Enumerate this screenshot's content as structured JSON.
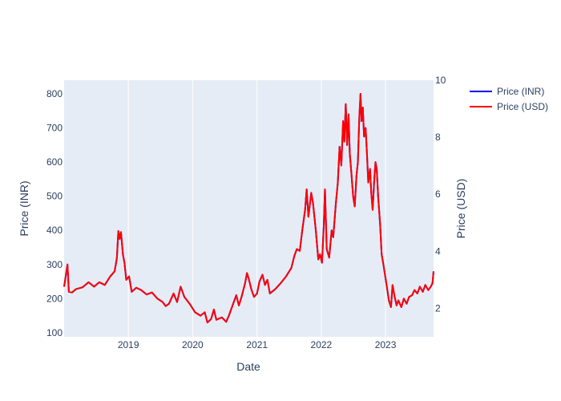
{
  "chart_data": {
    "type": "line",
    "xlabel": "Date",
    "ylabel_left": "Price (INR)",
    "ylabel_right": "Price (USD)",
    "x_ticks": [
      "2019",
      "2020",
      "2021",
      "2022",
      "2023"
    ],
    "x_range": [
      "2018-01-01",
      "2023-10-01"
    ],
    "y_left_ticks": [
      100,
      200,
      300,
      400,
      500,
      600,
      700,
      800
    ],
    "y_left_range": [
      88,
      840
    ],
    "y_right_ticks": [
      2,
      4,
      6,
      8,
      10
    ],
    "y_right_range": [
      1.0,
      10.0
    ],
    "grid": true,
    "legend_placement": "top-right",
    "series": [
      {
        "name": "Price (INR)",
        "color": "#0000ff",
        "axis": "left",
        "points": [
          [
            "2018-01-01",
            235
          ],
          [
            "2018-01-10",
            265
          ],
          [
            "2018-01-20",
            300
          ],
          [
            "2018-01-28",
            220
          ],
          [
            "2018-02-15",
            218
          ],
          [
            "2018-03-10",
            228
          ],
          [
            "2018-04-15",
            233
          ],
          [
            "2018-05-20",
            248
          ],
          [
            "2018-06-20",
            235
          ],
          [
            "2018-07-20",
            248
          ],
          [
            "2018-08-20",
            240
          ],
          [
            "2018-09-20",
            265
          ],
          [
            "2018-10-15",
            280
          ],
          [
            "2018-10-28",
            320
          ],
          [
            "2018-11-05",
            398
          ],
          [
            "2018-11-12",
            375
          ],
          [
            "2018-11-20",
            395
          ],
          [
            "2018-12-01",
            330
          ],
          [
            "2018-12-10",
            305
          ],
          [
            "2018-12-20",
            255
          ],
          [
            "2019-01-05",
            265
          ],
          [
            "2019-01-20",
            220
          ],
          [
            "2019-02-15",
            232
          ],
          [
            "2019-03-15",
            225
          ],
          [
            "2019-04-15",
            212
          ],
          [
            "2019-05-15",
            218
          ],
          [
            "2019-06-15",
            200
          ],
          [
            "2019-07-15",
            190
          ],
          [
            "2019-08-01",
            178
          ],
          [
            "2019-08-20",
            185
          ],
          [
            "2019-09-15",
            215
          ],
          [
            "2019-10-05",
            190
          ],
          [
            "2019-10-25",
            235
          ],
          [
            "2019-11-15",
            205
          ],
          [
            "2019-12-15",
            185
          ],
          [
            "2020-01-15",
            160
          ],
          [
            "2020-02-15",
            150
          ],
          [
            "2020-03-10",
            160
          ],
          [
            "2020-03-25",
            130
          ],
          [
            "2020-04-15",
            140
          ],
          [
            "2020-05-01",
            168
          ],
          [
            "2020-05-15",
            138
          ],
          [
            "2020-06-15",
            145
          ],
          [
            "2020-07-10",
            132
          ],
          [
            "2020-07-25",
            150
          ],
          [
            "2020-08-15",
            180
          ],
          [
            "2020-09-05",
            210
          ],
          [
            "2020-09-20",
            180
          ],
          [
            "2020-10-05",
            205
          ],
          [
            "2020-10-25",
            245
          ],
          [
            "2020-11-05",
            275
          ],
          [
            "2020-11-15",
            258
          ],
          [
            "2020-12-01",
            225
          ],
          [
            "2020-12-15",
            205
          ],
          [
            "2021-01-01",
            215
          ],
          [
            "2021-01-15",
            250
          ],
          [
            "2021-02-01",
            270
          ],
          [
            "2021-02-15",
            240
          ],
          [
            "2021-03-01",
            255
          ],
          [
            "2021-03-15",
            215
          ],
          [
            "2021-04-15",
            228
          ],
          [
            "2021-05-15",
            245
          ],
          [
            "2021-06-15",
            265
          ],
          [
            "2021-07-15",
            290
          ],
          [
            "2021-08-01",
            325
          ],
          [
            "2021-08-15",
            345
          ],
          [
            "2021-09-01",
            340
          ],
          [
            "2021-09-15",
            400
          ],
          [
            "2021-10-01",
            460
          ],
          [
            "2021-10-10",
            520
          ],
          [
            "2021-10-20",
            440
          ],
          [
            "2021-11-05",
            510
          ],
          [
            "2021-11-15",
            480
          ],
          [
            "2021-12-01",
            400
          ],
          [
            "2021-12-15",
            315
          ],
          [
            "2021-12-25",
            330
          ],
          [
            "2022-01-05",
            305
          ],
          [
            "2022-01-15",
            410
          ],
          [
            "2022-01-22",
            520
          ],
          [
            "2022-02-01",
            345
          ],
          [
            "2022-02-15",
            320
          ],
          [
            "2022-03-01",
            400
          ],
          [
            "2022-03-10",
            380
          ],
          [
            "2022-03-25",
            480
          ],
          [
            "2022-04-05",
            540
          ],
          [
            "2022-04-15",
            645
          ],
          [
            "2022-04-25",
            590
          ],
          [
            "2022-05-05",
            720
          ],
          [
            "2022-05-12",
            660
          ],
          [
            "2022-05-20",
            770
          ],
          [
            "2022-05-28",
            650
          ],
          [
            "2022-06-05",
            740
          ],
          [
            "2022-06-12",
            625
          ],
          [
            "2022-06-20",
            575
          ],
          [
            "2022-07-01",
            500
          ],
          [
            "2022-07-10",
            470
          ],
          [
            "2022-07-20",
            560
          ],
          [
            "2022-07-28",
            600
          ],
          [
            "2022-08-05",
            730
          ],
          [
            "2022-08-12",
            800
          ],
          [
            "2022-08-18",
            720
          ],
          [
            "2022-08-25",
            760
          ],
          [
            "2022-09-01",
            675
          ],
          [
            "2022-09-10",
            700
          ],
          [
            "2022-09-18",
            620
          ],
          [
            "2022-09-25",
            540
          ],
          [
            "2022-10-05",
            580
          ],
          [
            "2022-10-12",
            510
          ],
          [
            "2022-10-20",
            460
          ],
          [
            "2022-10-28",
            540
          ],
          [
            "2022-11-05",
            600
          ],
          [
            "2022-11-12",
            580
          ],
          [
            "2022-11-20",
            500
          ],
          [
            "2022-12-01",
            420
          ],
          [
            "2022-12-10",
            330
          ],
          [
            "2022-12-20",
            300
          ],
          [
            "2023-01-01",
            260
          ],
          [
            "2023-01-10",
            230
          ],
          [
            "2023-01-20",
            195
          ],
          [
            "2023-02-01",
            175
          ],
          [
            "2023-02-10",
            240
          ],
          [
            "2023-02-20",
            210
          ],
          [
            "2023-03-05",
            180
          ],
          [
            "2023-03-15",
            195
          ],
          [
            "2023-04-01",
            175
          ],
          [
            "2023-04-15",
            200
          ],
          [
            "2023-05-01",
            185
          ],
          [
            "2023-05-15",
            205
          ],
          [
            "2023-06-01",
            210
          ],
          [
            "2023-06-15",
            225
          ],
          [
            "2023-07-01",
            215
          ],
          [
            "2023-07-15",
            235
          ],
          [
            "2023-08-01",
            220
          ],
          [
            "2023-08-15",
            240
          ],
          [
            "2023-09-01",
            225
          ],
          [
            "2023-09-15",
            235
          ],
          [
            "2023-09-25",
            245
          ],
          [
            "2023-10-01",
            280
          ]
        ]
      },
      {
        "name": "Price (USD)",
        "color": "#ff0000",
        "axis": "right",
        "same_shape_as": "Price (INR)"
      }
    ]
  }
}
